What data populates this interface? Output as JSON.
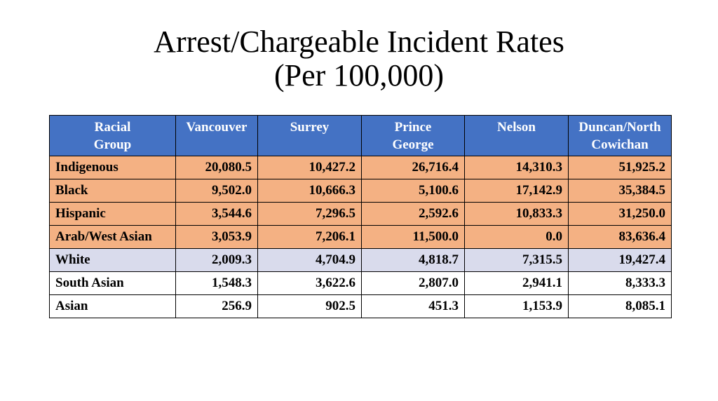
{
  "title": {
    "line1": "Arrest/Chargeable Incident Rates",
    "line2": "(Per 100,000)"
  },
  "table": {
    "headers": [
      "Racial Group",
      "Vancouver",
      "Surrey",
      "Prince George",
      "Nelson",
      "Duncan/North Cowichan"
    ],
    "header_lines": [
      [
        "Racial",
        "Group"
      ],
      [
        "Vancouver",
        ""
      ],
      [
        "Surrey",
        ""
      ],
      [
        "Prince",
        "George"
      ],
      [
        "Nelson",
        ""
      ],
      [
        "Duncan/North",
        "Cowichan"
      ]
    ],
    "rows": [
      {
        "group": "Indigenous",
        "values": [
          "20,080.5",
          "10,427.2",
          "26,716.4",
          "14,310.3",
          "51,925.2"
        ],
        "highlight": "orange"
      },
      {
        "group": "Black",
        "values": [
          "9,502.0",
          "10,666.3",
          "5,100.6",
          "17,142.9",
          "35,384.5"
        ],
        "highlight": "orange"
      },
      {
        "group": "Hispanic",
        "values": [
          "3,544.6",
          "7,296.5",
          "2,592.6",
          "10,833.3",
          "31,250.0"
        ],
        "highlight": "orange"
      },
      {
        "group": "Arab/West Asian",
        "values": [
          "3,053.9",
          "7,206.1",
          "11,500.0",
          "0.0",
          "83,636.4"
        ],
        "highlight": "orange"
      },
      {
        "group": "White",
        "values": [
          "2,009.3",
          "4,704.9",
          "4,818.7",
          "7,315.5",
          "19,427.4"
        ],
        "highlight": "lavender"
      },
      {
        "group": "South Asian",
        "values": [
          "1,548.3",
          "3,622.6",
          "2,807.0",
          "2,941.1",
          "8,333.3"
        ],
        "highlight": "none"
      },
      {
        "group": "Asian",
        "values": [
          "256.9",
          "902.5",
          "451.3",
          "1,153.9",
          "8,085.1"
        ],
        "highlight": "none"
      }
    ]
  },
  "colors": {
    "header_bg": "#4472c4",
    "header_text": "#ffffff",
    "highlight_orange": "#f4b183",
    "highlight_lavender": "#d9dbec",
    "border": "#000000"
  }
}
